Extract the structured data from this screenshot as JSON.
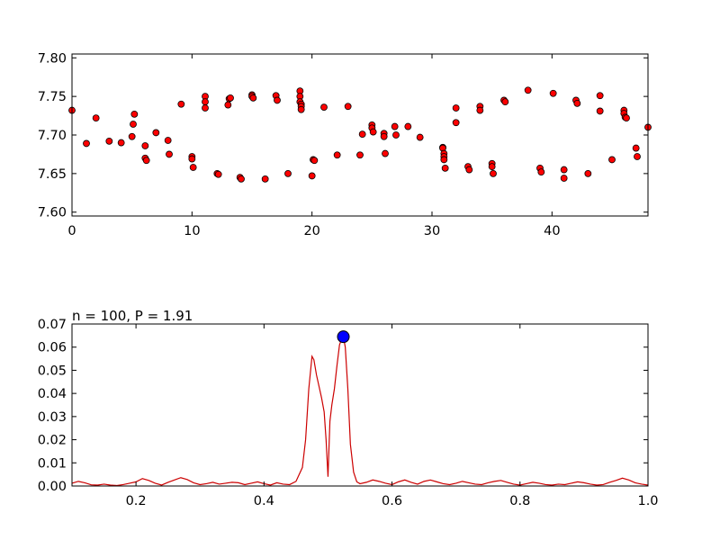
{
  "chart_data": [
    {
      "type": "scatter",
      "title": "",
      "xlabel": "",
      "ylabel": "",
      "xlim": [
        0,
        48
      ],
      "ylim": [
        7.595,
        7.805
      ],
      "grid": false,
      "x_ticks": [
        0,
        10,
        20,
        30,
        40
      ],
      "x_tick_labels": [
        "0",
        "10",
        "20",
        "30",
        "40"
      ],
      "y_ticks": [
        7.6,
        7.65,
        7.7,
        7.75,
        7.8
      ],
      "y_tick_labels": [
        "7.60",
        "7.65",
        "7.70",
        "7.75",
        "7.80"
      ],
      "marker_color": "#ff0000",
      "marker_edge": "#000000",
      "points": [
        [
          0.0,
          7.732
        ],
        [
          1.2,
          7.689
        ],
        [
          2.0,
          7.722
        ],
        [
          3.1,
          7.692
        ],
        [
          4.1,
          7.69
        ],
        [
          5.0,
          7.698
        ],
        [
          5.1,
          7.714
        ],
        [
          5.2,
          7.727
        ],
        [
          6.1,
          7.686
        ],
        [
          6.1,
          7.67
        ],
        [
          6.2,
          7.667
        ],
        [
          7.0,
          7.703
        ],
        [
          8.0,
          7.693
        ],
        [
          8.1,
          7.675
        ],
        [
          9.1,
          7.74
        ],
        [
          10.0,
          7.672
        ],
        [
          10.0,
          7.669
        ],
        [
          10.1,
          7.658
        ],
        [
          11.1,
          7.75
        ],
        [
          11.1,
          7.743
        ],
        [
          11.1,
          7.735
        ],
        [
          12.1,
          7.65
        ],
        [
          12.2,
          7.649
        ],
        [
          13.0,
          7.739
        ],
        [
          13.1,
          7.747
        ],
        [
          13.2,
          7.748
        ],
        [
          14.0,
          7.645
        ],
        [
          14.1,
          7.643
        ],
        [
          15.0,
          7.752
        ],
        [
          15.0,
          7.75
        ],
        [
          15.1,
          7.748
        ],
        [
          16.1,
          7.643
        ],
        [
          17.0,
          7.751
        ],
        [
          17.1,
          7.745
        ],
        [
          18.0,
          7.65
        ],
        [
          19.0,
          7.757
        ],
        [
          19.0,
          7.75
        ],
        [
          19.0,
          7.743
        ],
        [
          19.1,
          7.74
        ],
        [
          19.1,
          7.737
        ],
        [
          19.1,
          7.733
        ],
        [
          20.0,
          7.647
        ],
        [
          20.1,
          7.668
        ],
        [
          20.2,
          7.667
        ],
        [
          21.0,
          7.736
        ],
        [
          22.1,
          7.674
        ],
        [
          23.0,
          7.737
        ],
        [
          24.0,
          7.674
        ],
        [
          24.2,
          7.701
        ],
        [
          25.0,
          7.713
        ],
        [
          25.0,
          7.709
        ],
        [
          25.1,
          7.704
        ],
        [
          26.0,
          7.702
        ],
        [
          26.0,
          7.698
        ],
        [
          26.1,
          7.676
        ],
        [
          26.9,
          7.711
        ],
        [
          27.0,
          7.7
        ],
        [
          28.0,
          7.711
        ],
        [
          29.0,
          7.697
        ],
        [
          30.9,
          7.684
        ],
        [
          30.9,
          7.683
        ],
        [
          31.0,
          7.676
        ],
        [
          31.0,
          7.672
        ],
        [
          31.0,
          7.668
        ],
        [
          31.1,
          7.657
        ],
        [
          32.0,
          7.716
        ],
        [
          32.0,
          7.735
        ],
        [
          33.0,
          7.659
        ],
        [
          33.1,
          7.655
        ],
        [
          34.0,
          7.737
        ],
        [
          34.0,
          7.732
        ],
        [
          35.0,
          7.663
        ],
        [
          35.0,
          7.659
        ],
        [
          35.1,
          7.65
        ],
        [
          36.0,
          7.745
        ],
        [
          36.1,
          7.743
        ],
        [
          38.0,
          7.758
        ],
        [
          39.0,
          7.657
        ],
        [
          39.1,
          7.652
        ],
        [
          40.1,
          7.754
        ],
        [
          41.0,
          7.655
        ],
        [
          41.0,
          7.644
        ],
        [
          42.0,
          7.745
        ],
        [
          42.1,
          7.741
        ],
        [
          43.0,
          7.65
        ],
        [
          44.0,
          7.751
        ],
        [
          44.0,
          7.731
        ],
        [
          45.0,
          7.668
        ],
        [
          46.0,
          7.732
        ],
        [
          46.0,
          7.728
        ],
        [
          46.1,
          7.723
        ],
        [
          46.2,
          7.722
        ],
        [
          47.0,
          7.683
        ],
        [
          47.1,
          7.672
        ],
        [
          48.0,
          7.71
        ]
      ]
    },
    {
      "type": "line",
      "title": "n = 100, P = 1.91",
      "xlabel": "",
      "ylabel": "",
      "xlim": [
        0.1,
        1.0
      ],
      "ylim": [
        0.0,
        0.07
      ],
      "grid": false,
      "x_ticks": [
        0.2,
        0.4,
        0.6,
        0.8,
        1.0
      ],
      "x_tick_labels": [
        "0.2",
        "0.4",
        "0.6",
        "0.8",
        "1.0"
      ],
      "y_ticks": [
        0.0,
        0.01,
        0.02,
        0.03,
        0.04,
        0.05,
        0.06,
        0.07
      ],
      "y_tick_labels": [
        "0.00",
        "0.01",
        "0.02",
        "0.03",
        "0.04",
        "0.05",
        "0.06",
        "0.07"
      ],
      "line_color": "#cc0000",
      "peak_marker": {
        "x": 0.524,
        "y": 0.0645,
        "color": "#0000ff"
      },
      "series": [
        {
          "x": [
            0.1,
            0.11,
            0.12,
            0.13,
            0.14,
            0.15,
            0.16,
            0.17,
            0.18,
            0.19,
            0.2,
            0.21,
            0.22,
            0.23,
            0.24,
            0.25,
            0.26,
            0.27,
            0.28,
            0.29,
            0.3,
            0.31,
            0.32,
            0.33,
            0.34,
            0.35,
            0.36,
            0.37,
            0.38,
            0.39,
            0.4,
            0.41,
            0.42,
            0.43,
            0.44,
            0.45,
            0.46,
            0.465,
            0.47,
            0.475,
            0.478,
            0.482,
            0.486,
            0.49,
            0.494,
            0.497,
            0.5,
            0.503,
            0.506,
            0.51,
            0.514,
            0.518,
            0.522,
            0.524,
            0.527,
            0.531,
            0.535,
            0.54,
            0.545,
            0.55,
            0.56,
            0.57,
            0.58,
            0.59,
            0.6,
            0.61,
            0.62,
            0.63,
            0.64,
            0.65,
            0.66,
            0.67,
            0.68,
            0.69,
            0.7,
            0.71,
            0.72,
            0.73,
            0.74,
            0.75,
            0.76,
            0.77,
            0.78,
            0.79,
            0.8,
            0.81,
            0.82,
            0.83,
            0.84,
            0.85,
            0.86,
            0.87,
            0.88,
            0.89,
            0.9,
            0.91,
            0.92,
            0.93,
            0.94,
            0.95,
            0.96,
            0.97,
            0.98,
            0.99,
            1.0
          ],
          "y": [
            0.0012,
            0.002,
            0.0014,
            0.0005,
            0.0004,
            0.0008,
            0.0004,
            0.0002,
            0.0006,
            0.0012,
            0.0018,
            0.0032,
            0.0024,
            0.0012,
            0.0004,
            0.0016,
            0.0026,
            0.0036,
            0.0028,
            0.0014,
            0.0006,
            0.001,
            0.0016,
            0.0008,
            0.0012,
            0.0016,
            0.0014,
            0.0006,
            0.0012,
            0.0018,
            0.001,
            0.0004,
            0.0014,
            0.0008,
            0.0006,
            0.002,
            0.008,
            0.02,
            0.042,
            0.056,
            0.0545,
            0.048,
            0.043,
            0.038,
            0.032,
            0.02,
            0.004,
            0.028,
            0.035,
            0.042,
            0.052,
            0.061,
            0.064,
            0.0645,
            0.06,
            0.042,
            0.018,
            0.006,
            0.0018,
            0.001,
            0.0016,
            0.0026,
            0.002,
            0.0012,
            0.0006,
            0.0018,
            0.0026,
            0.0016,
            0.0008,
            0.002,
            0.0026,
            0.0018,
            0.001,
            0.0006,
            0.0012,
            0.002,
            0.0014,
            0.0008,
            0.0006,
            0.0014,
            0.002,
            0.0024,
            0.0016,
            0.0008,
            0.0004,
            0.001,
            0.0016,
            0.0012,
            0.0006,
            0.0004,
            0.0008,
            0.0006,
            0.0012,
            0.0018,
            0.0014,
            0.0008,
            0.0004,
            0.0006,
            0.0016,
            0.0024,
            0.0034,
            0.0026,
            0.0014,
            0.0008,
            0.0004
          ]
        }
      ]
    }
  ]
}
